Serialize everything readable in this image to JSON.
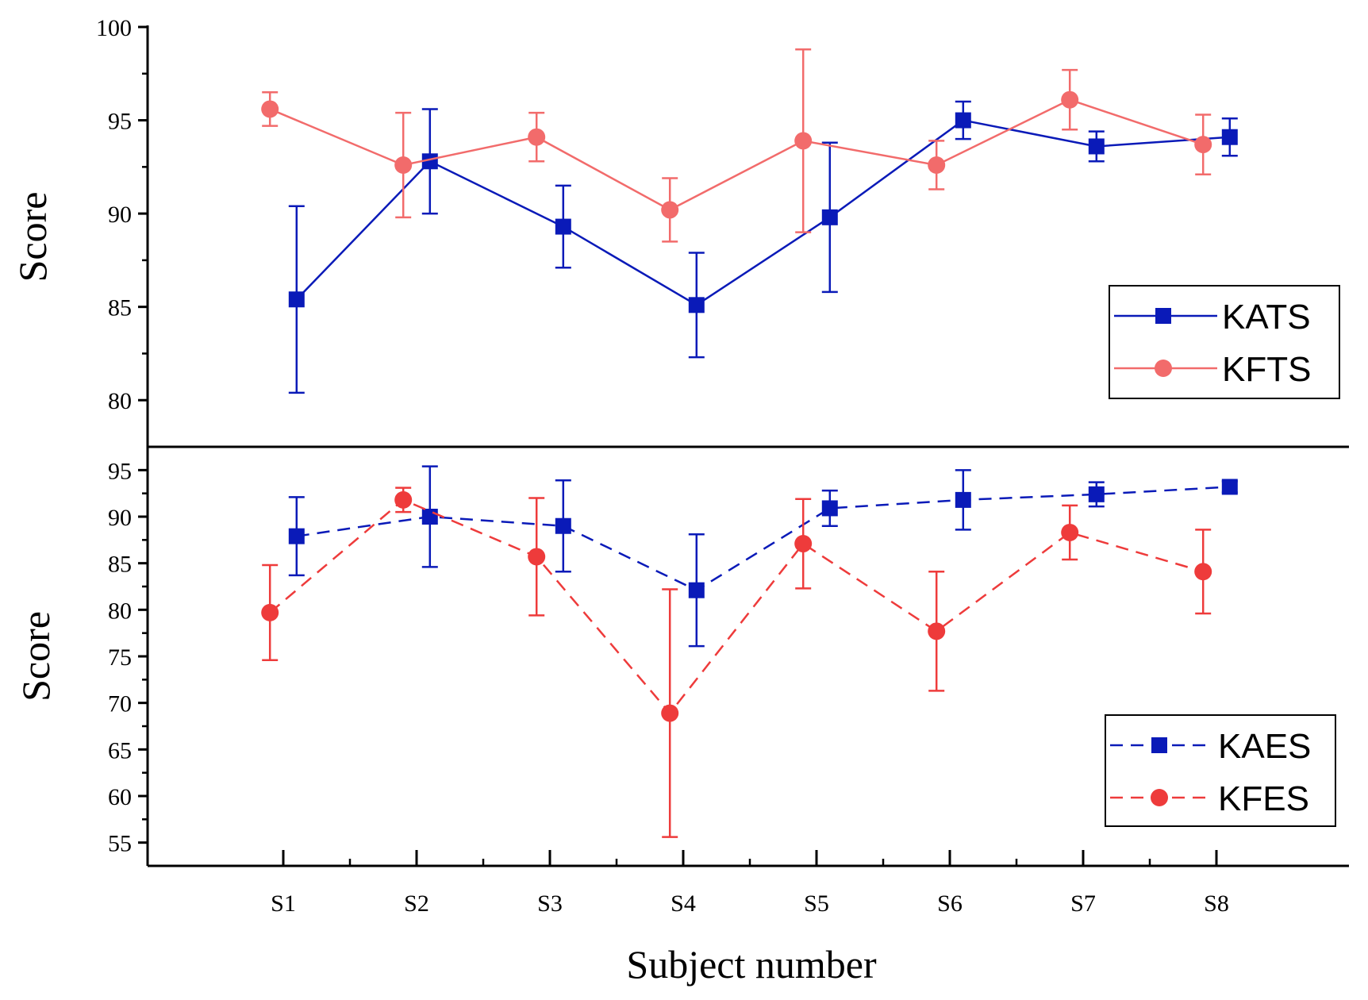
{
  "chart_data": {
    "type": "line",
    "categories": [
      "S1",
      "S2",
      "S3",
      "S4",
      "S5",
      "S6",
      "S7",
      "S8"
    ],
    "xlabel": "Subject number",
    "panels": [
      {
        "ylabel": "Score",
        "ylim": [
          77.5,
          100
        ],
        "yticks": [
          80,
          85,
          90,
          95,
          100
        ],
        "yticks_minor": [
          82.5,
          87.5,
          92.5,
          97.5
        ],
        "legend_position": "bottom-right",
        "series": [
          {
            "name": "KATS",
            "color": "#0a1ab8",
            "marker": "square",
            "dashed": false,
            "offset": 0.1,
            "values": [
              85.4,
              92.8,
              89.3,
              85.1,
              89.8,
              95.0,
              93.6,
              94.1
            ],
            "errors": [
              5.0,
              2.8,
              2.2,
              2.8,
              4.0,
              1.0,
              0.8,
              1.0
            ]
          },
          {
            "name": "KFTS",
            "color": "#f26b6b",
            "marker": "circle",
            "dashed": false,
            "offset": -0.1,
            "values": [
              95.6,
              92.6,
              94.1,
              90.2,
              93.9,
              92.6,
              96.1,
              93.7
            ],
            "errors": [
              0.9,
              2.8,
              1.3,
              1.7,
              4.9,
              1.3,
              1.6,
              1.6
            ]
          }
        ]
      },
      {
        "ylabel": "Score",
        "ylim": [
          52.5,
          97.5
        ],
        "yticks": [
          55,
          60,
          65,
          70,
          75,
          80,
          85,
          90,
          95
        ],
        "yticks_minor": [
          57.5,
          62.5,
          67.5,
          72.5,
          77.5,
          82.5,
          87.5,
          92.5
        ],
        "legend_position": "bottom-right",
        "series": [
          {
            "name": "KAES",
            "color": "#0a1ab8",
            "marker": "square",
            "dashed": true,
            "offset": 0.1,
            "values": [
              87.9,
              90.0,
              89.0,
              82.1,
              90.9,
              91.8,
              92.4,
              93.2
            ],
            "errors": [
              4.2,
              5.4,
              4.9,
              6.0,
              1.9,
              3.2,
              1.3,
              0.6
            ]
          },
          {
            "name": "KFES",
            "color": "#ee3b3b",
            "marker": "circle",
            "dashed": true,
            "offset": -0.1,
            "values": [
              79.7,
              91.8,
              85.7,
              68.9,
              87.1,
              77.7,
              88.3,
              84.1
            ],
            "errors": [
              5.1,
              1.3,
              6.3,
              13.3,
              4.8,
              6.4,
              2.9,
              4.5
            ]
          }
        ]
      }
    ]
  }
}
